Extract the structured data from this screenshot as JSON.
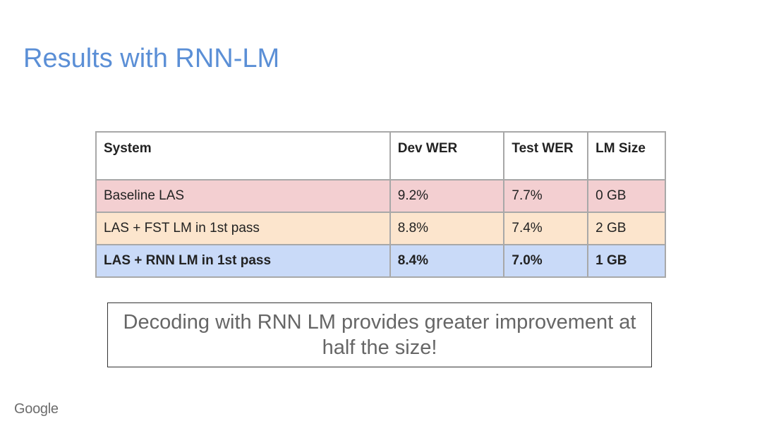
{
  "slide": {
    "title": "Results with RNN-LM",
    "logo_text": "Google"
  },
  "table": {
    "headers": [
      "System",
      "Dev WER",
      "Test WER",
      "LM Size"
    ],
    "rows": [
      {
        "system": "Baseline LAS",
        "dev_wer": "9.2%",
        "test_wer": "7.7%",
        "lm_size": "0 GB"
      },
      {
        "system": "LAS + FST LM in 1st pass",
        "dev_wer": "8.8%",
        "test_wer": "7.4%",
        "lm_size": "2 GB"
      },
      {
        "system": "LAS + RNN LM in 1st pass",
        "dev_wer": "8.4%",
        "test_wer": "7.0%",
        "lm_size": "1 GB"
      }
    ]
  },
  "callout": {
    "text": "Decoding with RNN LM provides greater improvement at half the size!"
  },
  "colors": {
    "title": "#5b8fd6",
    "row_baseline": "#f3cfd1",
    "row_fst": "#fce5cd",
    "row_rnn": "#c9daf8",
    "border": "#a8a8a8"
  }
}
